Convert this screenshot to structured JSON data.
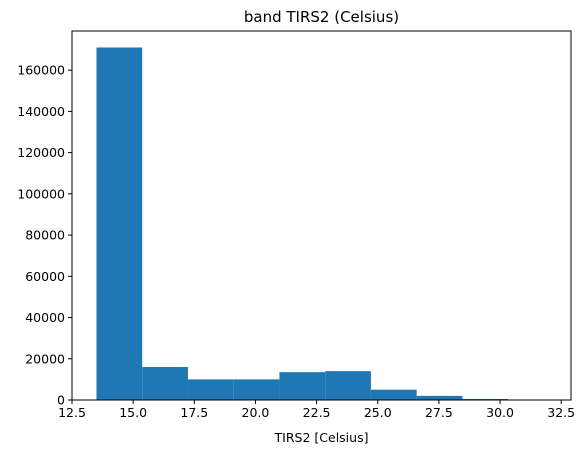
{
  "chart_data": {
    "type": "bar",
    "title": "band TIRS2 (Celsius)",
    "xlabel": "TIRS2 [Celsius]",
    "ylabel": "",
    "xlim": [
      12.5,
      32.9
    ],
    "ylim": [
      0,
      179000
    ],
    "xticks": [
      12.5,
      15.0,
      17.5,
      20.0,
      22.5,
      25.0,
      27.5,
      30.0,
      32.5
    ],
    "xtick_labels": [
      "12.5",
      "15.0",
      "17.5",
      "20.0",
      "22.5",
      "25.0",
      "27.5",
      "30.0",
      "32.5"
    ],
    "yticks": [
      0,
      20000,
      40000,
      60000,
      80000,
      100000,
      120000,
      140000,
      160000
    ],
    "ytick_labels": [
      "0",
      "20000",
      "40000",
      "60000",
      "80000",
      "100000",
      "120000",
      "140000",
      "160000"
    ],
    "bins": [
      {
        "x0": 13.5,
        "x1": 15.37,
        "value": 171000
      },
      {
        "x0": 15.37,
        "x1": 17.24,
        "value": 16000
      },
      {
        "x0": 17.24,
        "x1": 19.11,
        "value": 10000
      },
      {
        "x0": 19.11,
        "x1": 20.98,
        "value": 10000
      },
      {
        "x0": 20.98,
        "x1": 22.85,
        "value": 13500
      },
      {
        "x0": 22.85,
        "x1": 24.72,
        "value": 14000
      },
      {
        "x0": 24.72,
        "x1": 26.59,
        "value": 5000
      },
      {
        "x0": 26.59,
        "x1": 28.46,
        "value": 2000
      },
      {
        "x0": 28.46,
        "x1": 30.33,
        "value": 500
      },
      {
        "x0": 30.33,
        "x1": 32.2,
        "value": 100
      }
    ],
    "bar_color": "#1f77b4",
    "grid": false,
    "legend": "none"
  }
}
